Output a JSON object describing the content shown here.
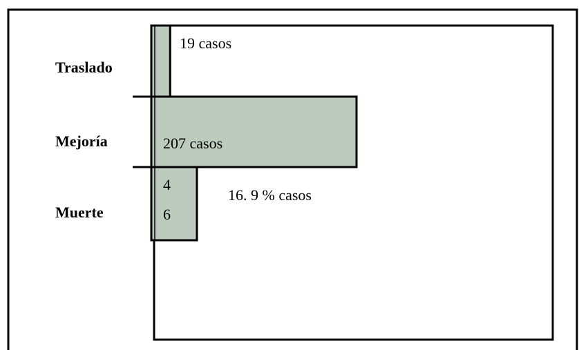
{
  "chart_data": {
    "type": "bar",
    "orientation": "horizontal",
    "categories": [
      "Traslado",
      "Mejoría",
      "Muerte"
    ],
    "values": [
      19,
      207,
      46
    ],
    "value_labels": [
      "19 casos",
      "207 casos",
      "4\n6"
    ],
    "color": "#bccbbd",
    "annotation": "16. 9 % casos"
  }
}
